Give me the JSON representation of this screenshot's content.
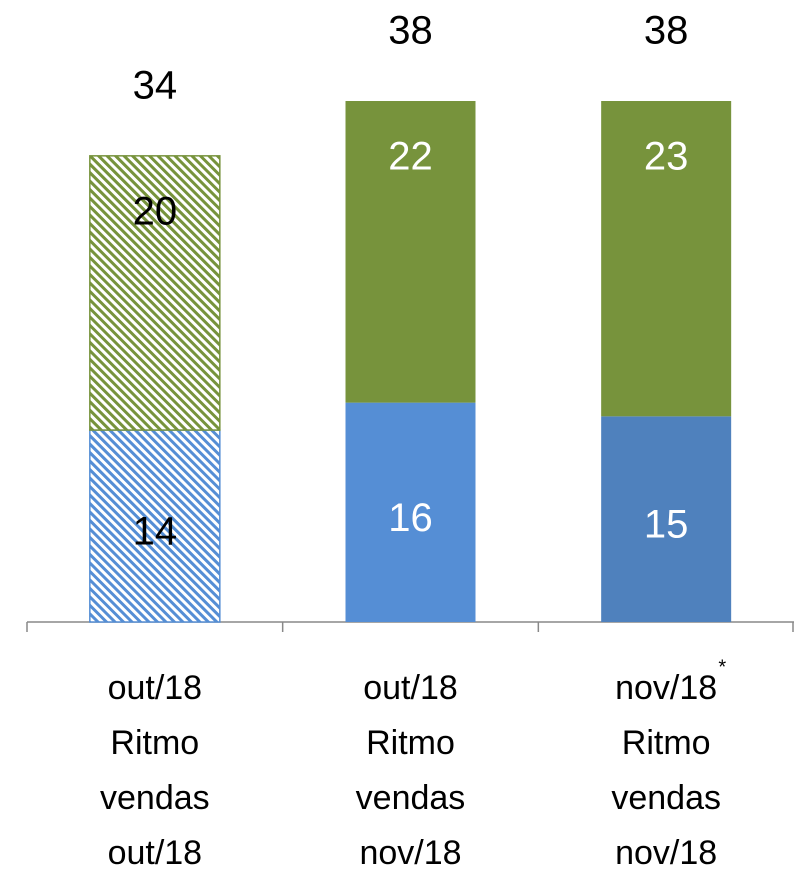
{
  "chart_data": {
    "type": "stacked-bar",
    "categories": [
      [
        "out/18",
        "Ritmo",
        "vendas",
        "out/18"
      ],
      [
        "out/18",
        "Ritmo",
        "vendas",
        "nov/18"
      ],
      [
        "nov/18",
        "Ritmo",
        "vendas",
        "nov/18"
      ]
    ],
    "category_markers": [
      null,
      null,
      "*"
    ],
    "series": [
      {
        "values": [
          14,
          16,
          15
        ],
        "colors": [
          "#558ed5",
          "#558ed5",
          "#4f81bd"
        ]
      },
      {
        "values": [
          20,
          22,
          23
        ],
        "colors": [
          "#77933c",
          "#77933c",
          "#77933c"
        ]
      }
    ],
    "totals": [
      34,
      38,
      38
    ],
    "hatched": [
      true,
      false,
      false
    ],
    "label_colors": [
      "#000000",
      "#ffffff",
      "#ffffff"
    ]
  }
}
